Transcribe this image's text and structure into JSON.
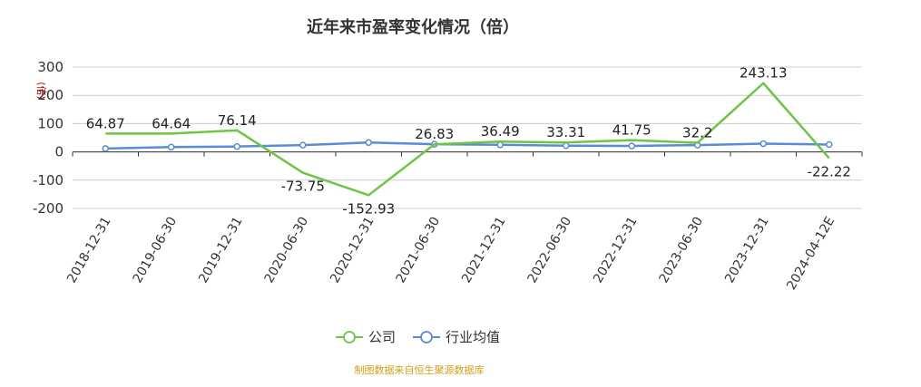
{
  "chart_data": {
    "type": "line",
    "title": "近年来市盈率变化情况（倍）",
    "ylabel": "(倍)",
    "categories": [
      "2018-12-31",
      "2019-06-30",
      "2019-12-31",
      "2020-06-30",
      "2020-12-31",
      "2021-06-30",
      "2021-12-31",
      "2022-06-30",
      "2022-12-31",
      "2023-06-30",
      "2023-12-31",
      "2024-04-12E"
    ],
    "ylim": [
      -200,
      300
    ],
    "yticks": [
      300,
      200,
      100,
      0,
      -100,
      -200
    ],
    "grid": true,
    "legend_position": "bottom",
    "series": [
      {
        "name": "公司",
        "color": "#6cc644",
        "values": [
          64.87,
          64.64,
          76.14,
          -73.75,
          -152.93,
          26.83,
          36.49,
          33.31,
          41.75,
          32.2,
          243.13,
          -22.22
        ],
        "labels": [
          "64.87",
          "64.64",
          "76.14",
          "-73.75",
          "-152.93",
          "26.83",
          "36.49",
          "33.31",
          "41.75",
          "32.2",
          "243.13",
          "-22.22"
        ]
      },
      {
        "name": "行业均值",
        "color": "#5b8ad8",
        "values": [
          12,
          17,
          19,
          24,
          33,
          27,
          25,
          22,
          21,
          24,
          29,
          26
        ]
      }
    ],
    "source": "制图数据来自恒生聚源数据库"
  }
}
